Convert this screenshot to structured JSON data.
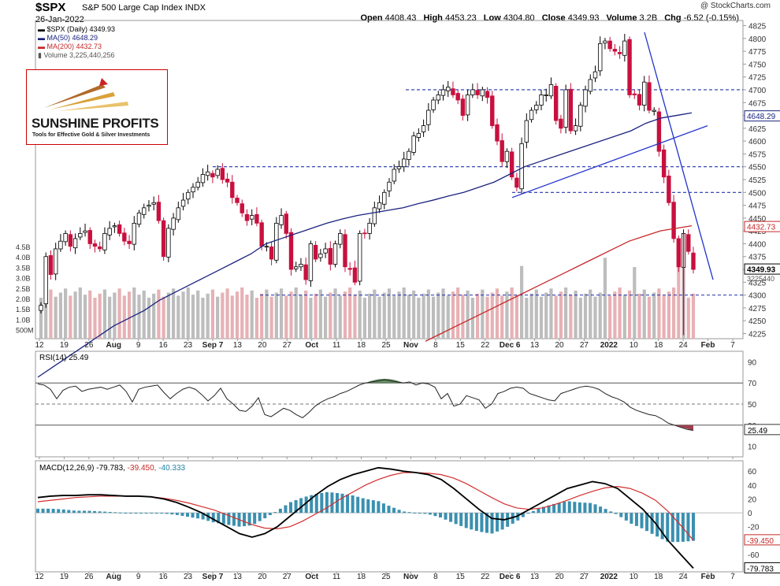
{
  "header": {
    "symbol": "$SPX",
    "description": "S&P 500 Large Cap Index",
    "exchange": "INDX",
    "date": "26-Jan-2022",
    "credit": "@ StockCharts.com",
    "open_label": "Open",
    "open": "4408.43",
    "high_label": "High",
    "high": "4453.23",
    "low_label": "Low",
    "low": "4304.80",
    "close_label": "Close",
    "close": "4349.93",
    "volume_label": "Volume",
    "volume": "3.2B",
    "chg_label": "Chg",
    "chg": "-6.52 (-0.15%)"
  },
  "legend": {
    "price": "$SPX (Daily) 4349.93",
    "ma50": "MA(50) 4648.29",
    "ma200": "MA(200) 4432.73",
    "volume": "Volume 3,225,440,256"
  },
  "logo": {
    "name": "SUNSHINE PROFITS",
    "tagline": "Tools for Effective Gold & Silver Investments"
  },
  "colors": {
    "up": "#ffffff",
    "down": "#c8103e",
    "ma50": "#1a237e",
    "ma200": "#c62828",
    "trend": "#2233cc",
    "vol_up": "#bdbdbd",
    "vol_down": "#e7b1b5",
    "rsi_line": "#222222",
    "macd_line": "#000000",
    "signal_line": "#d32f2f",
    "hist": "#3a90b0"
  },
  "x_axis": {
    "labels": [
      "12",
      "19",
      "26",
      "Aug",
      "9",
      "16",
      "23",
      "Sep 7",
      "13",
      "20",
      "27",
      "Oct",
      "11",
      "18",
      "25",
      "Nov",
      "8",
      "15",
      "22",
      "Dec 6",
      "13",
      "20",
      "27",
      "2022",
      "10",
      "18",
      "24",
      "Feb",
      "7"
    ]
  },
  "chart_data": [
    {
      "type": "candlestick",
      "title": "S&P 500 Large Cap Index",
      "y_ticks": [
        "4825",
        "4800",
        "4775",
        "4750",
        "4725",
        "4700",
        "4675",
        "4650",
        "4625",
        "4600",
        "4575",
        "4550",
        "4525",
        "4500",
        "4475",
        "4450",
        "4425",
        "4400",
        "4375",
        "4350",
        "4325",
        "4300",
        "4275",
        "4250",
        "4225"
      ],
      "ylim": [
        4215,
        4835
      ],
      "last_price_tag": "4349.93",
      "ma50_tag": "4648.29",
      "ma200_tag": "4432.73",
      "volume_tag": "3225440",
      "volume_ticks": [
        "4.5B",
        "4.0B",
        "3.5B",
        "3.0B",
        "2.5B",
        "2.0B",
        "1.5B",
        "1.0B",
        "500M"
      ],
      "volume_ylim_billions": [
        0,
        5
      ],
      "horizontal_levels": [
        4700,
        4550,
        4500,
        4300
      ],
      "close_path": [
        4280,
        4375,
        4340,
        4390,
        4405,
        4420,
        4395,
        4410,
        4420,
        4425,
        4400,
        4395,
        4390,
        4420,
        4430,
        4435,
        4420,
        4405,
        4400,
        4440,
        4460,
        4470,
        4475,
        4480,
        4445,
        4375,
        4430,
        4450,
        4470,
        4485,
        4500,
        4510,
        4520,
        4535,
        4540,
        4530,
        4545,
        4525,
        4520,
        4490,
        4480,
        4460,
        4445,
        4455,
        4440,
        4395,
        4395,
        4370,
        4440,
        4455,
        4420,
        4350,
        4355,
        4360,
        4330,
        4400,
        4370,
        4380,
        4390,
        4360,
        4400,
        4420,
        4355,
        4350,
        4325,
        4420,
        4420,
        4440,
        4470,
        4480,
        4500,
        4520,
        4545,
        4550,
        4565,
        4580,
        4610,
        4615,
        4630,
        4660,
        4680,
        4690,
        4700,
        4705,
        4690,
        4680,
        4650,
        4690,
        4700,
        4690,
        4700,
        4685,
        4630,
        4600,
        4560,
        4580,
        4530,
        4510,
        4595,
        4640,
        4660,
        4670,
        4690,
        4690,
        4710,
        4640,
        4625,
        4700,
        4620,
        4630,
        4670,
        4700,
        4720,
        4735,
        4790,
        4795,
        4780,
        4775,
        4770,
        4795,
        4690,
        4690,
        4670,
        4715,
        4660,
        4660,
        4580,
        4530,
        4480,
        4410,
        4355,
        4420,
        4385,
        4350
      ],
      "ma50": [
        4140,
        4160,
        4180,
        4200,
        4220,
        4240,
        4255,
        4270,
        4290,
        4305,
        4320,
        4335,
        4350,
        4365,
        4380,
        4400,
        4410,
        4420,
        4430,
        4440,
        4448,
        4455,
        4460,
        4465,
        4470,
        4478,
        4485,
        4493,
        4500,
        4510,
        4520,
        4535,
        4550,
        4560,
        4570,
        4580,
        4590,
        4600,
        4610,
        4620,
        4635,
        4645,
        4650,
        4655
      ],
      "ma200": [
        4210,
        4225,
        4240,
        4255,
        4270,
        4285,
        4300,
        4315,
        4330,
        4345,
        4360,
        4375,
        4390,
        4405,
        4415,
        4425,
        4430,
        4435
      ],
      "trendlines": [
        {
          "from": [
            4490,
            "Dec 6"
          ],
          "to": [
            4630,
            "Feb"
          ]
        },
        {
          "from": [
            4812,
            "10"
          ],
          "to": [
            4330,
            "Feb"
          ]
        }
      ]
    },
    {
      "type": "line",
      "title": "RSI(14) 25.49",
      "series_name": "RSI(14)",
      "last": "25.49",
      "y_ticks": [
        "90",
        "70",
        "50",
        "30",
        "10"
      ],
      "ylim": [
        0,
        100
      ],
      "overbought": 70,
      "oversold": 30,
      "values": [
        69,
        68,
        64,
        55,
        63,
        66,
        67,
        62,
        64,
        65,
        66,
        64,
        66,
        68,
        62,
        52,
        64,
        66,
        67,
        68,
        61,
        55,
        60,
        64,
        66,
        64,
        59,
        53,
        58,
        65,
        55,
        50,
        44,
        43,
        48,
        56,
        40,
        38,
        42,
        46,
        44,
        40,
        37,
        42,
        48,
        52,
        55,
        57,
        60,
        62,
        65,
        68,
        70,
        71,
        72,
        73,
        72,
        71,
        70,
        71,
        68,
        70,
        69,
        66,
        55,
        60,
        48,
        50,
        58,
        56,
        54,
        46,
        50,
        60,
        62,
        65,
        66,
        65,
        60,
        58,
        56,
        54,
        53,
        60,
        62,
        64,
        66,
        67,
        66,
        64,
        60,
        57,
        55,
        52,
        47,
        44,
        42,
        40,
        39,
        36,
        32,
        30,
        28,
        26,
        25
      ]
    },
    {
      "type": "line",
      "title": "MACD(12,26,9)",
      "series": [
        {
          "name": "MACD(12,26,9)",
          "last": "-79.783",
          "values": [
            22,
            24,
            25,
            25,
            26,
            26,
            25,
            24,
            24,
            23,
            20,
            15,
            8,
            0,
            -10,
            -20,
            -30,
            -35,
            -30,
            -20,
            -5,
            10,
            25,
            38,
            48,
            55,
            60,
            65,
            63,
            60,
            58,
            55,
            48,
            35,
            20,
            5,
            -8,
            -10,
            -5,
            5,
            15,
            25,
            35,
            40,
            45,
            42,
            35,
            20,
            5,
            -15,
            -40,
            -60,
            -79.8
          ]
        },
        {
          "name": "signal",
          "last": "-39.450",
          "values": [
            16,
            18,
            20,
            22,
            23,
            24,
            24,
            24,
            24,
            23,
            21,
            18,
            14,
            9,
            4,
            -3,
            -10,
            -17,
            -22,
            -23,
            -20,
            -12,
            -2,
            8,
            20,
            30,
            40,
            48,
            54,
            58,
            58,
            57,
            55,
            50,
            42,
            32,
            22,
            13,
            7,
            5,
            7,
            12,
            18,
            25,
            31,
            36,
            38,
            35,
            28,
            18,
            2,
            -18,
            -39.45
          ]
        },
        {
          "name": "histogram",
          "last": "-40.333"
        }
      ],
      "y_ticks": [
        "60",
        "40",
        "20",
        "0",
        "-20",
        "-40",
        "-60"
      ],
      "ylim": [
        -85,
        75
      ],
      "last_labels": [
        "-39.450",
        "-79.783"
      ]
    }
  ]
}
